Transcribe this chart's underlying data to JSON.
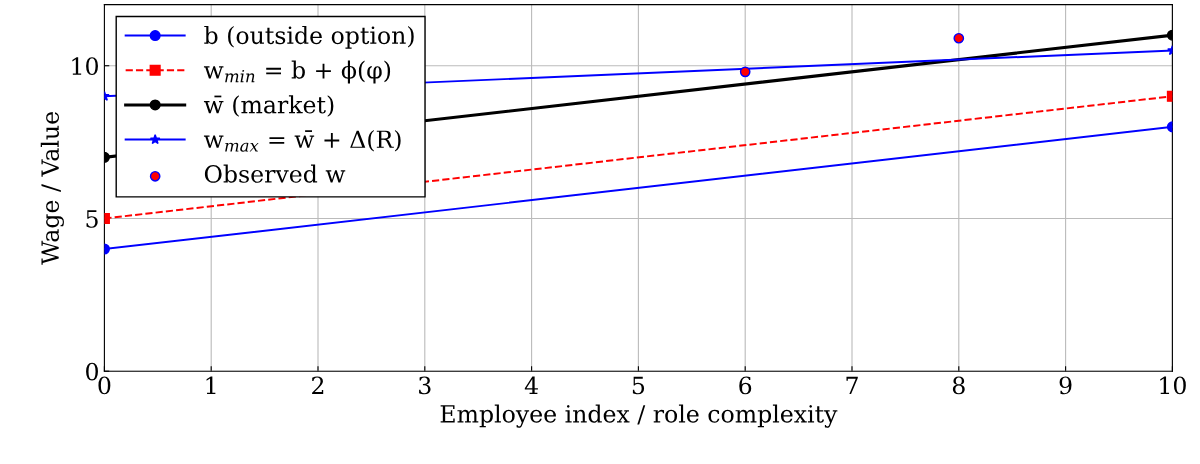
{
  "chart_data": {
    "type": "line",
    "xlabel": "Employee index / role complexity",
    "ylabel": "Wage / Value",
    "xlim": [
      0,
      10
    ],
    "ylim": [
      0,
      12
    ],
    "xticks": [
      0,
      1,
      2,
      3,
      4,
      5,
      6,
      7,
      8,
      9,
      10
    ],
    "yticks": [
      0,
      5,
      10
    ],
    "grid": true,
    "legend": "top left",
    "series": [
      {
        "name": "b (outside option)",
        "color": "#0000ff",
        "x": [
          0,
          10
        ],
        "values": [
          4,
          8
        ],
        "marker": "circle",
        "line_style": "solid"
      },
      {
        "name": "w$_{min}$ = b + ϕ(φ)",
        "color": "#ff0000",
        "x": [
          0,
          10
        ],
        "values": [
          5,
          9
        ],
        "marker": "square",
        "line_style": "dashed"
      },
      {
        "name": "w̄ (market)",
        "color": "#000000",
        "x": [
          0,
          10
        ],
        "values": [
          7,
          11
        ],
        "marker": "circle",
        "line_style": "solid"
      },
      {
        "name": "w$_{max}$ = w̄ + Δ(R)",
        "color": "#0000ff",
        "x": [
          0,
          10
        ],
        "values": [
          9,
          10.5
        ],
        "marker": "star",
        "line_style": "solid"
      },
      {
        "name": "Observed w",
        "type": "scatter",
        "color": "#ff0000",
        "x": [
          6,
          8
        ],
        "values": [
          9.8,
          10.9
        ],
        "marker": "circle"
      }
    ]
  }
}
